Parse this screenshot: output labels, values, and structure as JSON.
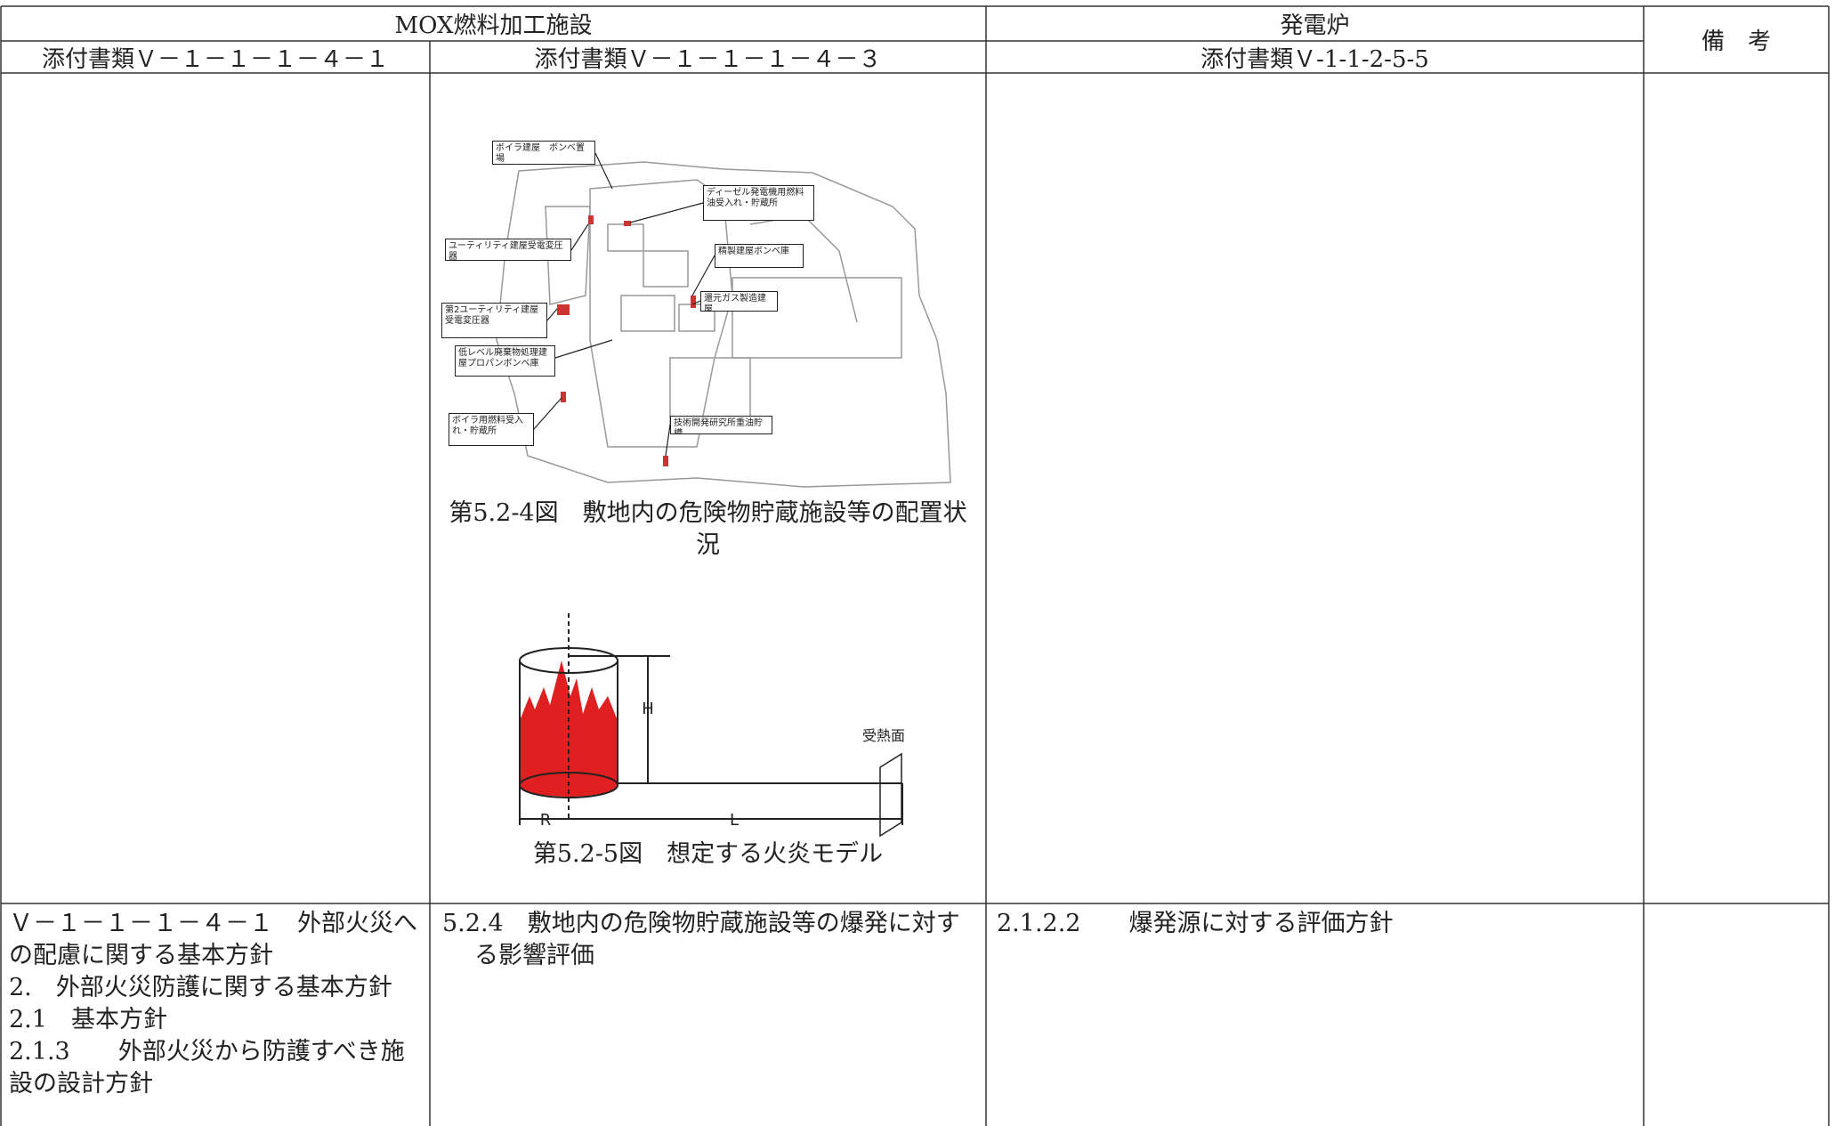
{
  "header": {
    "mox": "MOX燃料加工施設",
    "reactor": "発電炉",
    "remarks": "備　考",
    "docs": [
      "添付書類Ｖ－１－１－１－４－１",
      "添付書類Ｖ－１－１－１－４－３",
      "添付書類Ｖ-1-1-2-5-5"
    ]
  },
  "figures": {
    "site_map": {
      "labels": [
        "ボイラ建屋　ボンベ置場",
        "ディーゼル発電機用燃料油受入れ・貯蔵所",
        "ユーティリティ建屋受電変圧器",
        "精製建屋ボンベ庫",
        "第2ユーティリティ建屋受電変圧器",
        "還元ガス製造建屋",
        "低レベル廃棄物処理建屋プロパンボンベ庫",
        "ボイラ用燃料受入れ・貯蔵所",
        "技術開発研究所重油貯槽"
      ],
      "caption": "第5.2-4図　敷地内の危険物貯蔵施設等の配置状況"
    },
    "fire_model": {
      "labels": [
        "H",
        "R",
        "L",
        "受熱面"
      ],
      "caption": "第5.2-5図　想定する火炎モデル"
    }
  },
  "rows": [
    [
      "Ｖ－１－１－１－４－１　外部火災への配慮に関する基本方針",
      "2.　外部火災防護に関する基本方針",
      "2.1　基本方針",
      "2.1.3　　外部火災から防護すべき施設の設計方針"
    ],
    [
      "5.2.4　敷地内の危険物貯蔵施設等の爆発に対する影響評価"
    ],
    [
      "2.1.2.2　　爆発源に対する評価方針"
    ]
  ]
}
